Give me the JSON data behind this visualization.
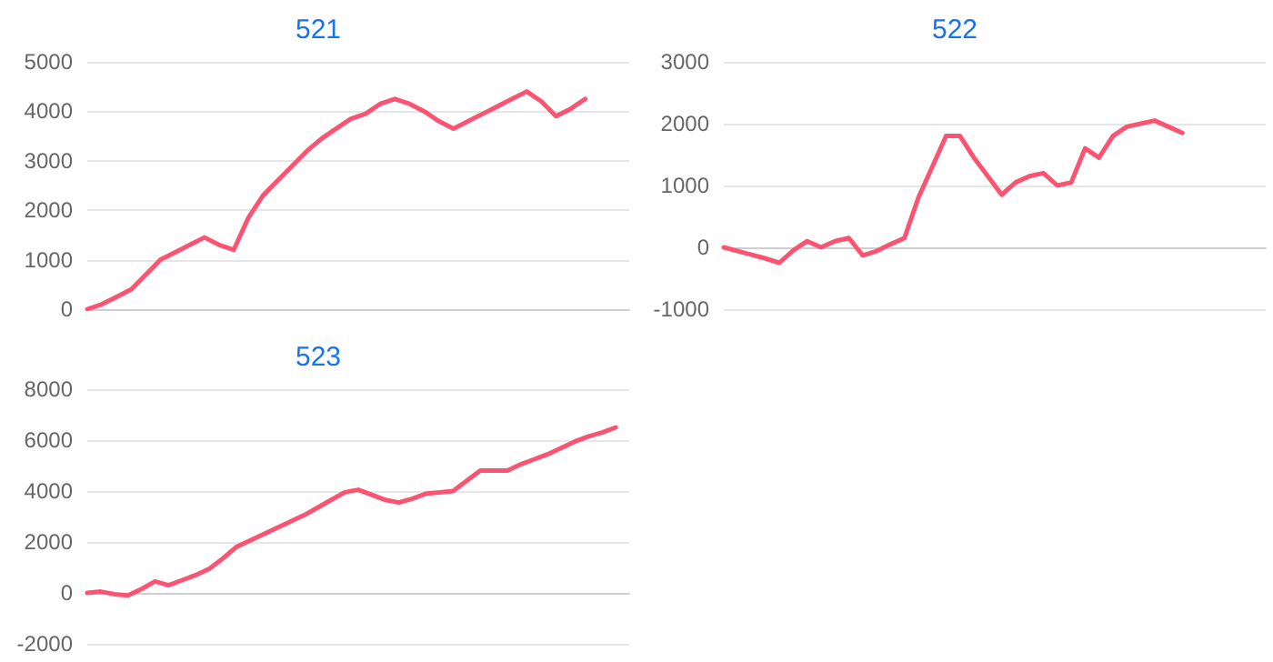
{
  "chart_data": [
    {
      "type": "line",
      "title": "521",
      "categories": [
        null,
        null,
        null,
        null,
        null,
        null,
        null,
        null,
        null,
        null,
        null,
        null,
        null,
        null,
        null,
        null,
        null,
        null,
        null,
        null,
        null,
        null,
        null,
        null,
        null,
        null,
        null,
        null,
        null,
        null,
        null,
        null,
        null,
        null,
        null,
        null,
        null,
        null
      ],
      "series": [
        {
          "color": "#fb5473",
          "values": [
            0,
            100,
            250,
            400,
            700,
            1000,
            1150,
            1300,
            1450,
            1300,
            1200,
            1850,
            2300,
            2600,
            2900,
            3200,
            3450,
            3650,
            3850,
            3950,
            4150,
            4250,
            4150,
            4000,
            3800,
            3650,
            3800,
            3950,
            4100,
            4250,
            4400,
            4200,
            3900,
            4050,
            4250,
            null,
            null,
            null
          ]
        }
      ],
      "ylim": [
        0,
        5000
      ],
      "yticks": [
        0,
        1000,
        2000,
        3000,
        4000,
        5000
      ],
      "grid": "y",
      "tick_labels": "y"
    },
    {
      "type": "line",
      "title": "522",
      "categories": [
        null,
        null,
        null,
        null,
        null,
        null,
        null,
        null,
        null,
        null,
        null,
        null,
        null,
        null,
        null,
        null,
        null,
        null,
        null,
        null,
        null,
        null,
        null,
        null,
        null,
        null,
        null,
        null,
        null,
        null,
        null,
        null,
        null,
        null,
        null,
        null,
        null,
        null,
        null,
        null
      ],
      "series": [
        {
          "color": "#fb5473",
          "values": [
            0,
            -60,
            -120,
            -180,
            -250,
            -50,
            100,
            0,
            100,
            150,
            -130,
            -60,
            50,
            150,
            800,
            1300,
            1800,
            1800,
            1450,
            1150,
            850,
            1050,
            1150,
            1200,
            1000,
            1050,
            1600,
            1450,
            1800,
            1950,
            2000,
            2050,
            1950,
            1850,
            null,
            null,
            null,
            null,
            null,
            null
          ]
        }
      ],
      "ylim": [
        -1000,
        3000
      ],
      "yticks": [
        -1000,
        0,
        1000,
        2000,
        3000
      ],
      "grid": "y",
      "tick_labels": "y"
    },
    {
      "type": "line",
      "title": "523",
      "categories": [
        null,
        null,
        null,
        null,
        null,
        null,
        null,
        null,
        null,
        null,
        null,
        null,
        null,
        null,
        null,
        null,
        null,
        null,
        null,
        null,
        null,
        null,
        null,
        null,
        null,
        null,
        null,
        null,
        null,
        null,
        null,
        null,
        null,
        null,
        null,
        null,
        null,
        null,
        null,
        null,
        null
      ],
      "series": [
        {
          "color": "#fb5473",
          "values": [
            0,
            50,
            -50,
            -100,
            150,
            450,
            300,
            500,
            700,
            950,
            1350,
            1800,
            2050,
            2300,
            2550,
            2800,
            3050,
            3350,
            3650,
            3950,
            4050,
            3850,
            3650,
            3550,
            3700,
            3900,
            3950,
            4000,
            4400,
            4800,
            4800,
            4800,
            5050,
            5250,
            5450,
            5700,
            5950,
            6150,
            6300,
            6500,
            null
          ]
        }
      ],
      "ylim": [
        -2000,
        8000
      ],
      "yticks": [
        -2000,
        0,
        2000,
        4000,
        6000,
        8000
      ],
      "grid": "y",
      "tick_labels": "y"
    }
  ]
}
